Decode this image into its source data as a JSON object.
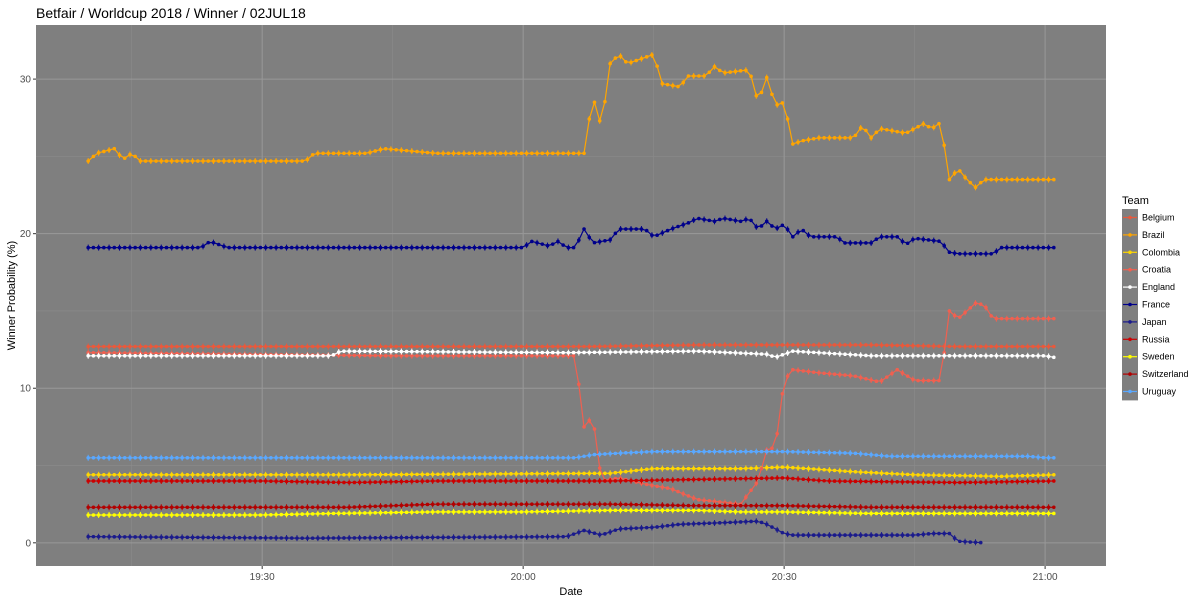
{
  "title": "Betfair / Worldcup 2018 / Winner / 02JUL18",
  "chart_data": {
    "type": "line",
    "xlabel": "Date",
    "ylabel": "Winner Probability (%)",
    "x_tick_labels": [
      "19:30",
      "20:00",
      "20:30",
      "21:00"
    ],
    "x_tick_minutes": [
      90,
      120,
      150,
      180
    ],
    "xlim_minutes": [
      64,
      187
    ],
    "ylim": [
      -1.5,
      33.5
    ],
    "y_ticks": [
      0,
      10,
      20,
      30
    ],
    "grid": true,
    "legend": {
      "title": "Team",
      "position": "right"
    },
    "series": [
      {
        "name": "Belgium",
        "color": "#e8593c",
        "points": [
          [
            70,
            12.7
          ],
          [
            85,
            12.7
          ],
          [
            110,
            12.7
          ],
          [
            128,
            12.7
          ],
          [
            140,
            12.8
          ],
          [
            160,
            12.8
          ],
          [
            170,
            12.7
          ],
          [
            178,
            12.7
          ],
          [
            181,
            12.7
          ]
        ]
      },
      {
        "name": "Brazil",
        "color": "#ffa500",
        "points": [
          [
            70,
            24.7
          ],
          [
            71,
            25.2
          ],
          [
            73,
            25.5
          ],
          [
            74,
            24.8
          ],
          [
            75,
            25.2
          ],
          [
            76,
            24.7
          ],
          [
            95,
            24.7
          ],
          [
            96,
            25.2
          ],
          [
            102,
            25.2
          ],
          [
            104,
            25.5
          ],
          [
            110,
            25.2
          ],
          [
            127,
            25.2
          ],
          [
            128,
            28.9
          ],
          [
            129,
            26.9
          ],
          [
            130,
            31.0
          ],
          [
            131,
            31.6
          ],
          [
            132,
            31.0
          ],
          [
            135,
            31.6
          ],
          [
            136,
            29.7
          ],
          [
            138,
            29.5
          ],
          [
            139,
            30.2
          ],
          [
            141,
            30.2
          ],
          [
            142,
            30.8
          ],
          [
            143,
            30.4
          ],
          [
            146,
            30.6
          ],
          [
            147,
            28.5
          ],
          [
            148,
            30.1
          ],
          [
            149,
            28.3
          ],
          [
            150,
            28.5
          ],
          [
            151,
            25.8
          ],
          [
            152,
            26.0
          ],
          [
            154,
            26.2
          ],
          [
            158,
            26.2
          ],
          [
            159,
            27.0
          ],
          [
            160,
            26.2
          ],
          [
            161,
            26.8
          ],
          [
            164,
            26.5
          ],
          [
            166,
            27.1
          ],
          [
            167,
            26.8
          ],
          [
            168,
            27.2
          ],
          [
            169,
            23.5
          ],
          [
            170,
            24.2
          ],
          [
            171,
            23.5
          ],
          [
            172,
            23.0
          ],
          [
            173,
            23.5
          ],
          [
            181,
            23.5
          ]
        ]
      },
      {
        "name": "Colombia",
        "color": "#ffd700",
        "points": [
          [
            70,
            4.4
          ],
          [
            100,
            4.4
          ],
          [
            130,
            4.5
          ],
          [
            135,
            4.8
          ],
          [
            145,
            4.8
          ],
          [
            150,
            4.9
          ],
          [
            158,
            4.6
          ],
          [
            165,
            4.4
          ],
          [
            175,
            4.3
          ],
          [
            181,
            4.4
          ]
        ]
      },
      {
        "name": "Croatia",
        "color": "#f06050",
        "points": [
          [
            70,
            12.3
          ],
          [
            105,
            12.1
          ],
          [
            126,
            12.1
          ],
          [
            127,
            7.5
          ],
          [
            128,
            8.2
          ],
          [
            129,
            4.0
          ],
          [
            131,
            4.2
          ],
          [
            134,
            3.8
          ],
          [
            137,
            3.5
          ],
          [
            140,
            2.8
          ],
          [
            145,
            2.5
          ],
          [
            147,
            4.0
          ],
          [
            148,
            6.0
          ],
          [
            149,
            6.2
          ],
          [
            150,
            10.5
          ],
          [
            151,
            11.2
          ],
          [
            154,
            11.0
          ],
          [
            158,
            10.8
          ],
          [
            161,
            10.4
          ],
          [
            163,
            11.2
          ],
          [
            165,
            10.5
          ],
          [
            168,
            10.5
          ],
          [
            169,
            15.0
          ],
          [
            170,
            14.5
          ],
          [
            171,
            15.0
          ],
          [
            172,
            15.5
          ],
          [
            173,
            15.4
          ],
          [
            174,
            14.5
          ],
          [
            181,
            14.5
          ]
        ]
      },
      {
        "name": "England",
        "color": "#ffffff",
        "points": [
          [
            70,
            12.1
          ],
          [
            98,
            12.1
          ],
          [
            99,
            12.4
          ],
          [
            125,
            12.3
          ],
          [
            140,
            12.4
          ],
          [
            148,
            12.2
          ],
          [
            149,
            12.0
          ],
          [
            151,
            12.4
          ],
          [
            160,
            12.1
          ],
          [
            170,
            12.1
          ],
          [
            180,
            12.1
          ],
          [
            181,
            12.0
          ]
        ]
      },
      {
        "name": "France",
        "color": "#00008b",
        "points": [
          [
            70,
            19.1
          ],
          [
            83,
            19.1
          ],
          [
            84,
            19.5
          ],
          [
            86,
            19.1
          ],
          [
            120,
            19.1
          ],
          [
            121,
            19.5
          ],
          [
            123,
            19.2
          ],
          [
            124,
            19.5
          ],
          [
            125,
            19.1
          ],
          [
            126,
            19.1
          ],
          [
            127,
            20.3
          ],
          [
            128,
            19.4
          ],
          [
            130,
            19.6
          ],
          [
            131,
            20.3
          ],
          [
            134,
            20.3
          ],
          [
            135,
            19.8
          ],
          [
            137,
            20.3
          ],
          [
            139,
            20.7
          ],
          [
            140,
            21.0
          ],
          [
            142,
            20.8
          ],
          [
            143,
            21.0
          ],
          [
            145,
            20.8
          ],
          [
            146,
            21.0
          ],
          [
            147,
            20.3
          ],
          [
            148,
            20.8
          ],
          [
            149,
            20.3
          ],
          [
            150,
            20.6
          ],
          [
            151,
            19.8
          ],
          [
            152,
            20.3
          ],
          [
            153,
            19.8
          ],
          [
            156,
            19.8
          ],
          [
            157,
            19.4
          ],
          [
            160,
            19.4
          ],
          [
            161,
            19.8
          ],
          [
            163,
            19.8
          ],
          [
            164,
            19.3
          ],
          [
            165,
            19.7
          ],
          [
            168,
            19.5
          ],
          [
            169,
            18.8
          ],
          [
            170,
            18.7
          ],
          [
            174,
            18.7
          ],
          [
            175,
            19.1
          ],
          [
            181,
            19.1
          ]
        ]
      },
      {
        "name": "Japan",
        "color": "#1a1a8c",
        "points": [
          [
            70,
            0.4
          ],
          [
            95,
            0.3
          ],
          [
            110,
            0.35
          ],
          [
            125,
            0.4
          ],
          [
            127,
            0.8
          ],
          [
            129,
            0.5
          ],
          [
            131,
            0.9
          ],
          [
            135,
            1.0
          ],
          [
            138,
            1.2
          ],
          [
            143,
            1.3
          ],
          [
            147,
            1.4
          ],
          [
            148,
            1.2
          ],
          [
            149,
            0.9
          ],
          [
            150,
            0.6
          ],
          [
            151,
            0.5
          ],
          [
            160,
            0.5
          ],
          [
            165,
            0.5
          ],
          [
            167,
            0.6
          ],
          [
            169,
            0.6
          ],
          [
            170,
            0.1
          ],
          [
            173,
            0.0
          ]
        ]
      },
      {
        "name": "Russia",
        "color": "#cc0000",
        "points": [
          [
            70,
            4.0
          ],
          [
            90,
            4.0
          ],
          [
            100,
            3.9
          ],
          [
            110,
            4.0
          ],
          [
            130,
            4.0
          ],
          [
            140,
            4.1
          ],
          [
            150,
            4.2
          ],
          [
            155,
            4.0
          ],
          [
            170,
            3.9
          ],
          [
            181,
            4.0
          ]
        ]
      },
      {
        "name": "Sweden",
        "color": "#ffff00",
        "points": [
          [
            70,
            1.8
          ],
          [
            90,
            1.8
          ],
          [
            98,
            1.9
          ],
          [
            110,
            2.0
          ],
          [
            120,
            2.0
          ],
          [
            130,
            2.1
          ],
          [
            140,
            2.1
          ],
          [
            145,
            2.0
          ],
          [
            150,
            2.0
          ],
          [
            160,
            1.9
          ],
          [
            170,
            1.9
          ],
          [
            181,
            1.9
          ]
        ]
      },
      {
        "name": "Switzerland",
        "color": "#b20000",
        "points": [
          [
            70,
            2.3
          ],
          [
            100,
            2.3
          ],
          [
            110,
            2.5
          ],
          [
            130,
            2.5
          ],
          [
            140,
            2.4
          ],
          [
            150,
            2.4
          ],
          [
            160,
            2.3
          ],
          [
            170,
            2.3
          ],
          [
            181,
            2.3
          ]
        ]
      },
      {
        "name": "Uruguay",
        "color": "#5aa8ff",
        "points": [
          [
            70,
            5.5
          ],
          [
            90,
            5.5
          ],
          [
            110,
            5.5
          ],
          [
            126,
            5.5
          ],
          [
            128,
            5.7
          ],
          [
            131,
            5.8
          ],
          [
            135,
            5.9
          ],
          [
            150,
            5.9
          ],
          [
            158,
            5.8
          ],
          [
            162,
            5.6
          ],
          [
            170,
            5.6
          ],
          [
            178,
            5.6
          ],
          [
            180,
            5.5
          ],
          [
            181,
            5.5
          ]
        ]
      }
    ]
  }
}
